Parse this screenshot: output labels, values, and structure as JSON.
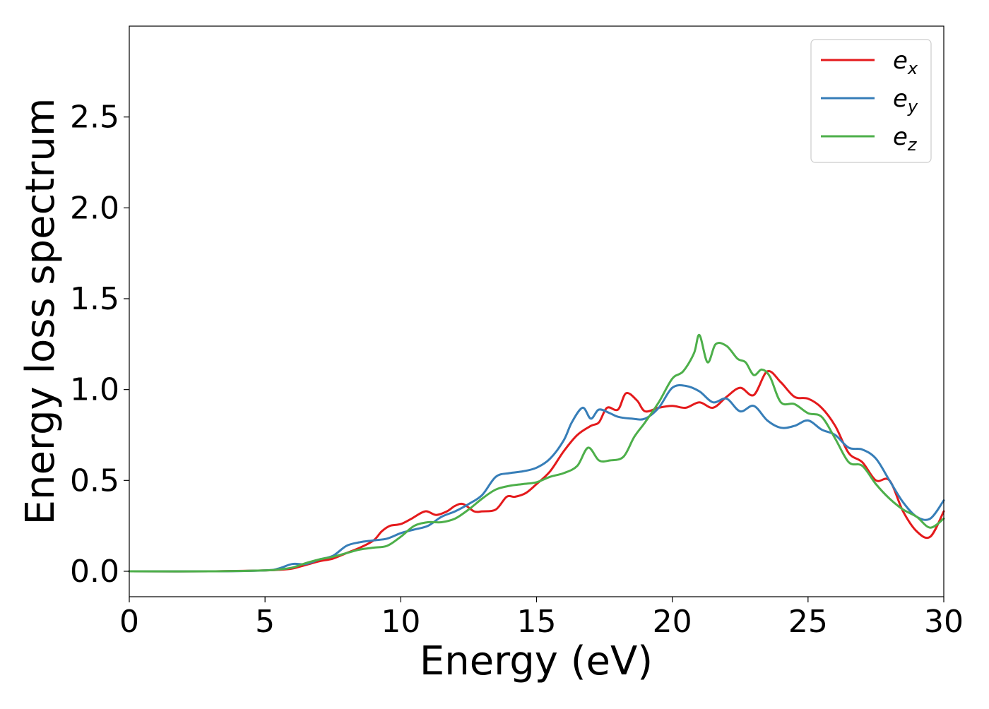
{
  "chart_data": {
    "type": "line",
    "title": "",
    "xlabel": "Energy (eV)",
    "ylabel": "Energy loss spectrum",
    "xlim": [
      0,
      30
    ],
    "ylim": [
      -0.14,
      3.0
    ],
    "xticks": [
      "0",
      "5",
      "10",
      "15",
      "20",
      "25",
      "30"
    ],
    "yticks": [
      "0.0",
      "0.5",
      "1.0",
      "1.5",
      "2.0",
      "2.5"
    ],
    "grid": false,
    "legend_position": "top-right",
    "series": [
      {
        "name": "e",
        "subscript": "x",
        "color": "#e41a1c",
        "x": [
          0,
          3,
          5,
          5.5,
          6,
          6.5,
          7,
          7.5,
          8,
          8.5,
          9,
          9.3,
          9.6,
          10,
          10.4,
          10.9,
          11.3,
          11.7,
          12,
          12.3,
          12.7,
          13,
          13.5,
          13.9,
          14.2,
          14.6,
          15,
          15.5,
          16,
          16.5,
          17,
          17.3,
          17.6,
          18.0,
          18.3,
          18.7,
          19.0,
          19.5,
          20,
          20.5,
          21,
          21.5,
          22,
          22.5,
          23,
          23.5,
          24,
          24.5,
          25,
          25.5,
          26,
          26.5,
          27,
          27.5,
          28,
          28.5,
          29,
          29.5,
          30
        ],
        "y": [
          0.0,
          0.0,
          0.005,
          0.008,
          0.015,
          0.035,
          0.055,
          0.07,
          0.1,
          0.13,
          0.17,
          0.22,
          0.25,
          0.26,
          0.29,
          0.33,
          0.31,
          0.33,
          0.36,
          0.37,
          0.33,
          0.33,
          0.34,
          0.41,
          0.41,
          0.43,
          0.48,
          0.55,
          0.66,
          0.75,
          0.8,
          0.82,
          0.9,
          0.89,
          0.98,
          0.94,
          0.88,
          0.9,
          0.91,
          0.9,
          0.93,
          0.9,
          0.96,
          1.01,
          0.97,
          1.1,
          1.04,
          0.96,
          0.95,
          0.9,
          0.8,
          0.65,
          0.6,
          0.5,
          0.5,
          0.33,
          0.22,
          0.19,
          0.33
        ]
      },
      {
        "name": "e",
        "subscript": "y",
        "color": "#377eb8",
        "x": [
          0,
          3,
          5,
          5.5,
          6,
          6.5,
          7,
          7.5,
          8,
          8.5,
          9,
          9.5,
          10,
          10.5,
          11,
          11.5,
          12,
          12.5,
          13,
          13.5,
          14,
          14.5,
          15,
          15.5,
          16,
          16.3,
          16.7,
          17,
          17.3,
          17.7,
          18.0,
          18.5,
          19,
          19.5,
          20,
          20.5,
          21,
          21.5,
          22,
          22.5,
          23,
          23.5,
          24,
          24.5,
          25,
          25.5,
          26,
          26.5,
          27,
          27.5,
          28,
          28.5,
          29,
          29.5,
          30
        ],
        "y": [
          0.0,
          0.0,
          0.005,
          0.015,
          0.04,
          0.04,
          0.065,
          0.085,
          0.14,
          0.16,
          0.17,
          0.18,
          0.21,
          0.23,
          0.25,
          0.3,
          0.33,
          0.37,
          0.42,
          0.52,
          0.54,
          0.55,
          0.57,
          0.62,
          0.72,
          0.82,
          0.9,
          0.84,
          0.89,
          0.87,
          0.85,
          0.84,
          0.84,
          0.9,
          1.01,
          1.02,
          0.99,
          0.93,
          0.95,
          0.88,
          0.91,
          0.83,
          0.79,
          0.8,
          0.83,
          0.78,
          0.75,
          0.68,
          0.67,
          0.62,
          0.5,
          0.38,
          0.3,
          0.29,
          0.39
        ]
      },
      {
        "name": "e",
        "subscript": "z",
        "color": "#4daf4a",
        "x": [
          0,
          3,
          5,
          5.5,
          6,
          6.5,
          7,
          7.5,
          8,
          8.5,
          9,
          9.5,
          10,
          10.5,
          11,
          11.5,
          12,
          12.5,
          13,
          13.5,
          14,
          14.5,
          15,
          15.5,
          16,
          16.5,
          16.9,
          17.3,
          17.7,
          18.2,
          18.6,
          19,
          19.5,
          20,
          20.4,
          20.8,
          21.0,
          21.3,
          21.6,
          22,
          22.4,
          22.7,
          23.0,
          23.3,
          23.6,
          24,
          24.5,
          25,
          25.5,
          26,
          26.5,
          27,
          27.5,
          28,
          28.5,
          29,
          29.5,
          30
        ],
        "y": [
          0.0,
          0.0,
          0.005,
          0.01,
          0.02,
          0.045,
          0.065,
          0.08,
          0.1,
          0.12,
          0.13,
          0.14,
          0.19,
          0.25,
          0.27,
          0.27,
          0.29,
          0.34,
          0.4,
          0.45,
          0.47,
          0.48,
          0.49,
          0.52,
          0.54,
          0.58,
          0.68,
          0.61,
          0.61,
          0.63,
          0.74,
          0.82,
          0.93,
          1.06,
          1.1,
          1.2,
          1.3,
          1.15,
          1.25,
          1.24,
          1.17,
          1.15,
          1.08,
          1.11,
          1.07,
          0.93,
          0.92,
          0.87,
          0.85,
          0.73,
          0.6,
          0.58,
          0.48,
          0.4,
          0.34,
          0.3,
          0.24,
          0.29
        ]
      }
    ]
  }
}
